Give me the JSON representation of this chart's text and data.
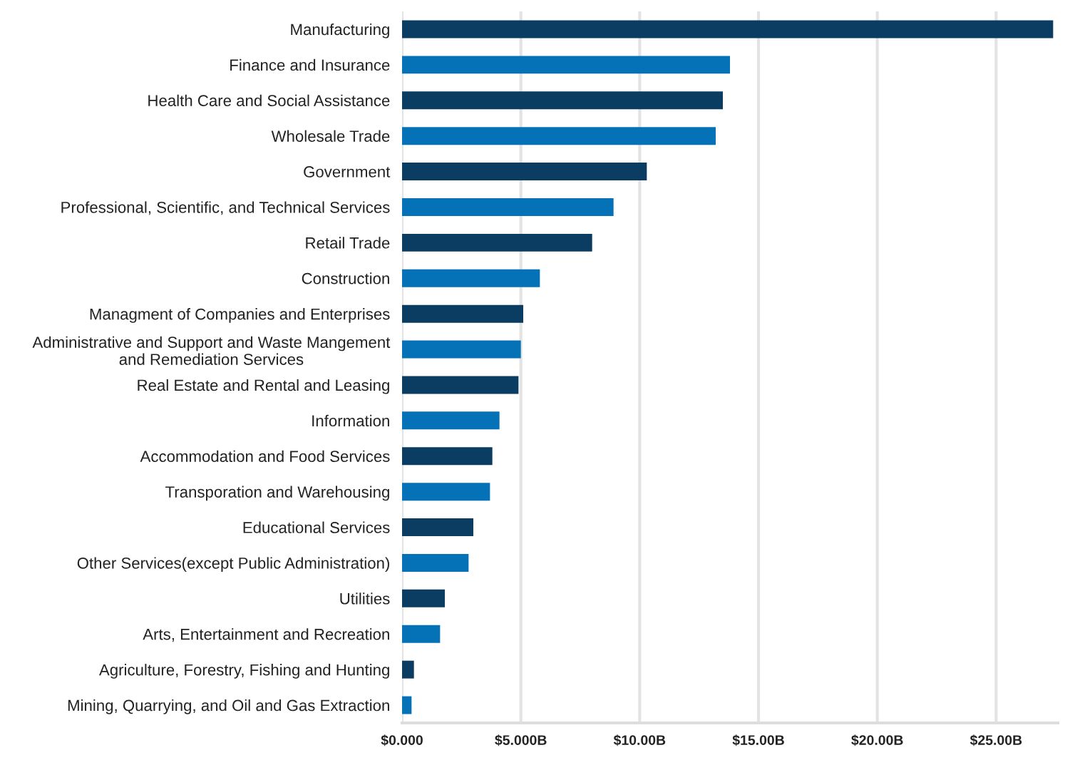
{
  "chart_data": {
    "type": "bar",
    "orientation": "horizontal",
    "categories": [
      "Manufacturing",
      "Finance and Insurance",
      "Health Care and Social Assistance",
      "Wholesale Trade",
      "Government",
      "Professional, Scientific, and Technical Services",
      "Retail Trade",
      "Construction",
      "Managment of Companies and Enterprises",
      "Administrative and Support and Waste Mangement\nand Remediation Services",
      "Real Estate and Rental and Leasing",
      "Information",
      "Accommodation and Food Services",
      "Transporation and Warehousing",
      "Educational Services",
      "Other Services(except Public Administration)",
      "Utilities",
      "Arts, Entertainment and Recreation",
      "Agriculture, Forestry, Fishing and Hunting",
      "Mining, Quarrying, and Oil and Gas Extraction"
    ],
    "values": [
      27.4,
      13.8,
      13.5,
      13.2,
      10.3,
      8.9,
      8.0,
      5.8,
      5.1,
      5.0,
      4.9,
      4.1,
      3.8,
      3.7,
      3.0,
      2.8,
      1.8,
      1.6,
      0.5,
      0.4
    ],
    "colors": [
      "#0b3c61",
      "#0572b8",
      "#0b3c61",
      "#0572b8",
      "#0b3c61",
      "#0572b8",
      "#0b3c61",
      "#0572b8",
      "#0b3c61",
      "#0572b8",
      "#0b3c61",
      "#0572b8",
      "#0b3c61",
      "#0572b8",
      "#0b3c61",
      "#0572b8",
      "#0b3c61",
      "#0572b8",
      "#0b3c61",
      "#0572b8"
    ],
    "xlim": [
      0,
      27.6
    ],
    "xticks": [
      {
        "value": 0,
        "label": "$0.000"
      },
      {
        "value": 5,
        "label": "$5.000B"
      },
      {
        "value": 10,
        "label": "$10.00B"
      },
      {
        "value": 15,
        "label": "$15.00B"
      },
      {
        "value": 20,
        "label": "$20.00B"
      },
      {
        "value": 25,
        "label": "$25.00B"
      }
    ],
    "grid": "x"
  }
}
